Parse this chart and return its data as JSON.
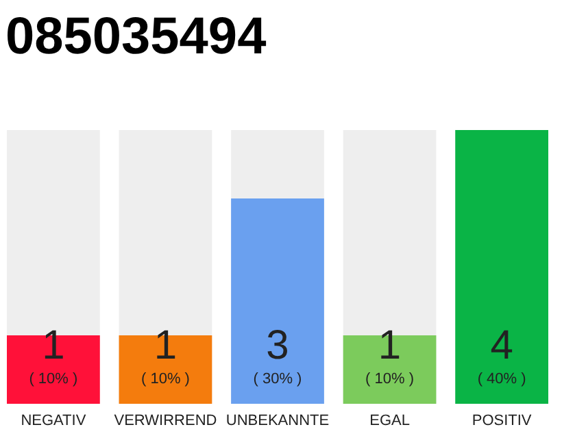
{
  "chart_data": {
    "type": "bar",
    "title": "085035494",
    "categories": [
      "NEGATIV",
      "VERWIRREND",
      "UNBEKANNTE",
      "EGAL",
      "POSITIV"
    ],
    "values": [
      1,
      1,
      3,
      1,
      4
    ],
    "colors": [
      "#ff1139",
      "#f47c0d",
      "#6aa0ef",
      "#7ccb5c",
      "#0ab446"
    ],
    "annotations": [
      "( 10% )",
      "( 10% )",
      "( 30% )",
      "( 10% )",
      "( 40% )"
    ],
    "data_labels": true,
    "grid": false
  }
}
